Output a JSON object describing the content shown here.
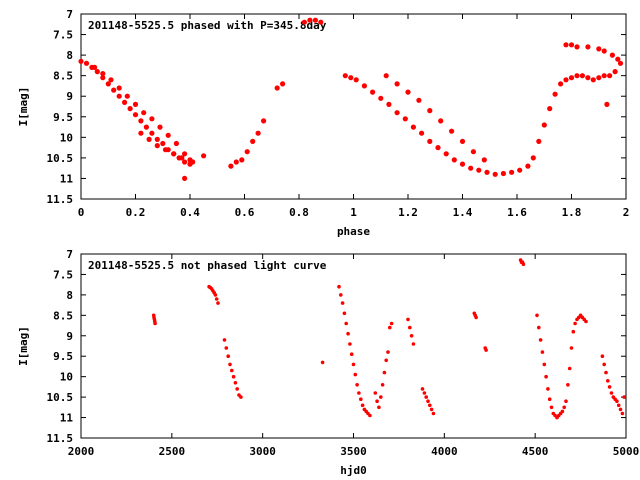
{
  "chart_data": [
    {
      "type": "scatter",
      "title": "201148-5525.5 phased with P=345.8day",
      "xlabel": "phase",
      "ylabel": "I[mag]",
      "xlim": [
        0,
        2
      ],
      "ylim": [
        11.5,
        7
      ],
      "y_inverted": true,
      "xticks": [
        "0",
        "0.2",
        "0.4",
        "0.6",
        "0.8",
        "1",
        "1.2",
        "1.4",
        "1.6",
        "1.8",
        "2"
      ],
      "yticks": [
        "7",
        "7.5",
        "8",
        "8.5",
        "9",
        "9.5",
        "10",
        "10.5",
        "11",
        "11.5"
      ],
      "color": "#ff0000",
      "series": [
        {
          "x": [
            0.0,
            0.02,
            0.04,
            0.06,
            0.08,
            0.1,
            0.12,
            0.14,
            0.16,
            0.18,
            0.2,
            0.22,
            0.24,
            0.26,
            0.28,
            0.3,
            0.32,
            0.34,
            0.36,
            0.38,
            0.4,
            0.05,
            0.08,
            0.11,
            0.14,
            0.17,
            0.2,
            0.23,
            0.26,
            0.29,
            0.32,
            0.35,
            0.38,
            0.41,
            0.22,
            0.25,
            0.28,
            0.31,
            0.34,
            0.37,
            0.4,
            0.45,
            0.55,
            0.57,
            0.59,
            0.61,
            0.63,
            0.65,
            0.67,
            0.72,
            0.74,
            0.82,
            0.84,
            0.86,
            0.88,
            0.97,
            0.99,
            1.01,
            1.04,
            1.07,
            1.1,
            1.13,
            1.16,
            1.19,
            1.22,
            1.25,
            1.28,
            1.31,
            1.34,
            1.37,
            1.4,
            1.43,
            1.46,
            1.49,
            1.52,
            1.55,
            1.58,
            1.61,
            1.64,
            1.12,
            1.16,
            1.2,
            1.24,
            1.28,
            1.32,
            1.36,
            1.4,
            1.44,
            1.48,
            1.66,
            1.68,
            1.7,
            1.72,
            1.74,
            1.76,
            1.78,
            1.8,
            1.82,
            1.84,
            1.86,
            1.88,
            1.9,
            1.92,
            1.94,
            1.96,
            1.98,
            1.78,
            1.8,
            1.82,
            1.86,
            1.9,
            1.92,
            1.95,
            1.97,
            0.38,
            1.93
          ],
          "y": [
            8.15,
            8.2,
            8.3,
            8.4,
            8.55,
            8.7,
            8.85,
            9.0,
            9.15,
            9.3,
            9.45,
            9.6,
            9.75,
            9.9,
            10.05,
            10.15,
            10.3,
            10.4,
            10.5,
            10.6,
            10.65,
            8.3,
            8.45,
            8.6,
            8.8,
            9.0,
            9.2,
            9.4,
            9.55,
            9.75,
            9.95,
            10.15,
            10.4,
            10.6,
            9.9,
            10.05,
            10.2,
            10.3,
            10.4,
            10.5,
            10.55,
            10.45,
            10.7,
            10.6,
            10.55,
            10.35,
            10.1,
            9.9,
            9.6,
            8.8,
            8.7,
            7.2,
            7.15,
            7.15,
            7.2,
            8.5,
            8.55,
            8.6,
            8.75,
            8.9,
            9.05,
            9.2,
            9.4,
            9.55,
            9.75,
            9.9,
            10.1,
            10.25,
            10.4,
            10.55,
            10.65,
            10.75,
            10.8,
            10.85,
            10.9,
            10.88,
            10.85,
            10.8,
            10.7,
            8.5,
            8.7,
            8.9,
            9.1,
            9.35,
            9.6,
            9.85,
            10.1,
            10.35,
            10.55,
            10.5,
            10.1,
            9.7,
            9.3,
            8.95,
            8.7,
            8.6,
            8.55,
            8.5,
            8.5,
            8.55,
            8.6,
            8.55,
            8.5,
            8.5,
            8.4,
            8.2,
            7.75,
            7.75,
            7.8,
            7.8,
            7.85,
            7.9,
            8.0,
            8.1,
            11.0,
            9.2
          ]
        }
      ]
    },
    {
      "type": "scatter",
      "title": "201148-5525.5 not phased light curve",
      "xlabel": "hjd0",
      "ylabel": "I[mag]",
      "xlim": [
        2000,
        5000
      ],
      "ylim": [
        11.5,
        7
      ],
      "y_inverted": true,
      "xticks": [
        "2000",
        "2500",
        "3000",
        "3500",
        "4000",
        "4500",
        "5000"
      ],
      "yticks": [
        "7",
        "7.5",
        "8",
        "8.5",
        "9",
        "9.5",
        "10",
        "10.5",
        "11",
        "11.5"
      ],
      "color": "#ff0000",
      "series": [
        {
          "x": [
            2400,
            2402,
            2404,
            2406,
            2408,
            2705,
            2712,
            2719,
            2726,
            2733,
            2740,
            2747,
            2754,
            2790,
            2800,
            2810,
            2820,
            2830,
            2840,
            2850,
            2860,
            2870,
            2880,
            3330,
            3420,
            3430,
            3440,
            3450,
            3460,
            3470,
            3480,
            3490,
            3500,
            3510,
            3520,
            3530,
            3540,
            3550,
            3560,
            3570,
            3580,
            3590,
            3620,
            3630,
            3640,
            3650,
            3660,
            3670,
            3680,
            3690,
            3700,
            3710,
            3800,
            3810,
            3820,
            3830,
            3880,
            3890,
            3900,
            3910,
            3920,
            3930,
            3940,
            4165,
            4170,
            4175,
            4225,
            4230,
            4420,
            4425,
            4430,
            4435,
            4510,
            4520,
            4530,
            4540,
            4550,
            4560,
            4570,
            4580,
            4590,
            4600,
            4610,
            4620,
            4630,
            4640,
            4650,
            4660,
            4670,
            4680,
            4690,
            4700,
            4710,
            4720,
            4730,
            4740,
            4750,
            4760,
            4770,
            4780,
            4870,
            4880,
            4890,
            4900,
            4910,
            4920,
            4930,
            4940,
            4950,
            4960,
            4970,
            4980,
            4990
          ],
          "y": [
            8.5,
            8.55,
            8.6,
            8.65,
            8.7,
            7.8,
            7.82,
            7.85,
            7.9,
            7.95,
            8.0,
            8.1,
            8.2,
            9.1,
            9.3,
            9.5,
            9.7,
            9.85,
            10.0,
            10.15,
            10.3,
            10.45,
            10.5,
            9.65,
            7.8,
            8.0,
            8.2,
            8.45,
            8.7,
            8.95,
            9.2,
            9.45,
            9.7,
            9.95,
            10.2,
            10.4,
            10.55,
            10.7,
            10.8,
            10.85,
            10.9,
            10.95,
            10.4,
            10.6,
            10.75,
            10.5,
            10.2,
            9.9,
            9.6,
            9.4,
            8.8,
            8.7,
            8.6,
            8.8,
            9.0,
            9.2,
            10.3,
            10.4,
            10.5,
            10.6,
            10.7,
            10.8,
            10.9,
            8.45,
            8.5,
            8.55,
            9.3,
            9.35,
            7.15,
            7.2,
            7.2,
            7.25,
            8.5,
            8.8,
            9.1,
            9.4,
            9.7,
            10.0,
            10.3,
            10.55,
            10.75,
            10.9,
            10.95,
            11.0,
            10.95,
            10.9,
            10.85,
            10.75,
            10.6,
            10.2,
            9.8,
            9.3,
            8.9,
            8.7,
            8.6,
            8.55,
            8.5,
            8.55,
            8.6,
            8.65,
            9.5,
            9.7,
            9.9,
            10.1,
            10.25,
            10.4,
            10.5,
            10.55,
            10.6,
            10.7,
            10.8,
            10.9,
            10.5
          ]
        }
      ]
    }
  ]
}
